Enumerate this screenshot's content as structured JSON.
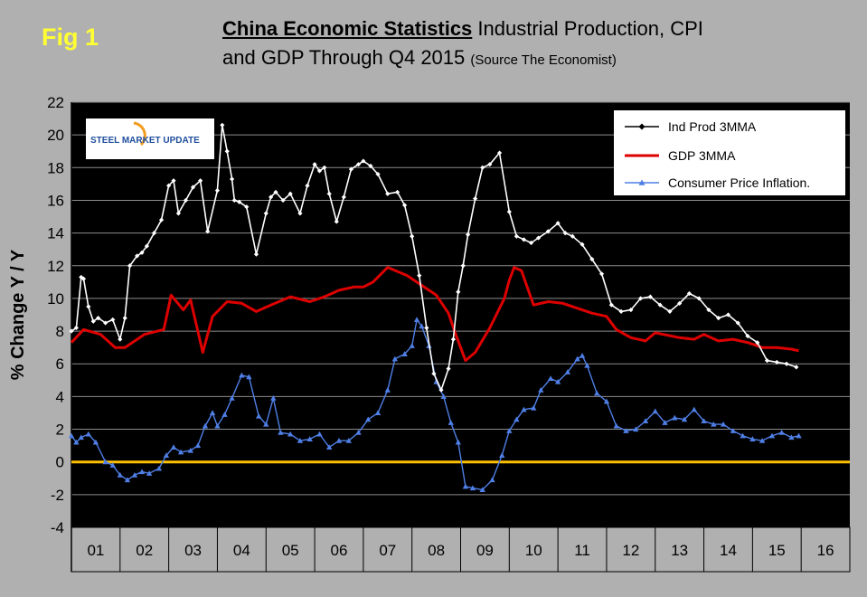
{
  "fig_label": "Fig 1",
  "title_main": "China Economic Statistics",
  "title_rest": "Industrial Production, CPI",
  "title_line2": "and GDP Through Q4 2015",
  "title_source": "(Source The Economist)",
  "logo_text": "STEEL MARKET UPDATE",
  "colors": {
    "ind_prod": "#ffffff",
    "gdp": "#dd0000",
    "cpi": "#4f7fe6",
    "zero_line": "#ffc000",
    "plot_bg": "#000000",
    "grid": "#8c8c8c"
  },
  "chart_data": {
    "type": "line",
    "ylabel": "% Change Y / Y",
    "ylim": [
      -4,
      22
    ],
    "yticks": [
      -4,
      -2,
      0,
      2,
      4,
      6,
      8,
      10,
      12,
      14,
      16,
      18,
      20,
      22
    ],
    "xlim": [
      2001,
      2017
    ],
    "x_categories": [
      "01",
      "02",
      "03",
      "04",
      "05",
      "06",
      "07",
      "08",
      "09",
      "10",
      "11",
      "12",
      "13",
      "14",
      "15",
      "16"
    ],
    "grid": true,
    "legend_position": "top-right",
    "reference_line": 0,
    "series": [
      {
        "name": "Ind Prod 3MMA",
        "x": [
          2001.0,
          2001.1,
          2001.2,
          2001.25,
          2001.35,
          2001.45,
          2001.55,
          2001.7,
          2001.85,
          2002.0,
          2002.1,
          2002.2,
          2002.35,
          2002.45,
          2002.55,
          2002.7,
          2002.85,
          2003.0,
          2003.1,
          2003.2,
          2003.35,
          2003.5,
          2003.65,
          2003.8,
          2004.0,
          2004.1,
          2004.2,
          2004.3,
          2004.35,
          2004.45,
          2004.6,
          2004.8,
          2005.0,
          2005.1,
          2005.2,
          2005.35,
          2005.5,
          2005.7,
          2005.85,
          2006.0,
          2006.1,
          2006.2,
          2006.3,
          2006.45,
          2006.6,
          2006.75,
          2006.9,
          2007.0,
          2007.15,
          2007.3,
          2007.5,
          2007.7,
          2007.85,
          2008.0,
          2008.15,
          2008.3,
          2008.45,
          2008.6,
          2008.75,
          2008.85,
          2008.95,
          2009.05,
          2009.15,
          2009.3,
          2009.45,
          2009.6,
          2009.8,
          2010.0,
          2010.15,
          2010.3,
          2010.45,
          2010.6,
          2010.8,
          2011.0,
          2011.15,
          2011.3,
          2011.5,
          2011.7,
          2011.9,
          2012.1,
          2012.3,
          2012.5,
          2012.7,
          2012.9,
          2013.1,
          2013.3,
          2013.5,
          2013.7,
          2013.9,
          2014.1,
          2014.3,
          2014.5,
          2014.7,
          2014.9,
          2015.1,
          2015.3,
          2015.5,
          2015.7,
          2015.9
        ],
        "y": [
          8.0,
          8.2,
          11.3,
          11.2,
          9.5,
          8.6,
          8.8,
          8.5,
          8.7,
          7.5,
          8.8,
          12.0,
          12.6,
          12.8,
          13.2,
          14.0,
          14.8,
          16.9,
          17.2,
          15.2,
          16.0,
          16.8,
          17.2,
          14.1,
          16.6,
          20.6,
          19.0,
          17.3,
          16.0,
          15.9,
          15.6,
          12.7,
          15.2,
          16.2,
          16.5,
          16.0,
          16.4,
          15.2,
          16.9,
          18.2,
          17.8,
          18.0,
          16.4,
          14.7,
          16.2,
          17.9,
          18.2,
          18.4,
          18.1,
          17.6,
          16.4,
          16.5,
          15.7,
          13.8,
          11.4,
          8.2,
          5.4,
          4.4,
          5.7,
          7.5,
          10.4,
          12.0,
          13.9,
          16.1,
          18.0,
          18.2,
          18.9,
          15.3,
          13.8,
          13.6,
          13.4,
          13.7,
          14.1,
          14.6,
          14.0,
          13.8,
          13.3,
          12.4,
          11.5,
          9.6,
          9.2,
          9.3,
          10.0,
          10.1,
          9.6,
          9.2,
          9.7,
          10.3,
          10.0,
          9.3,
          8.8,
          9.0,
          8.5,
          7.7,
          7.3,
          6.2,
          6.1,
          6.0,
          5.8
        ]
      },
      {
        "name": "GDP 3MMA",
        "x": [
          2001.0,
          2001.25,
          2001.6,
          2001.9,
          2002.1,
          2002.5,
          2002.9,
          2003.05,
          2003.3,
          2003.45,
          2003.7,
          2003.9,
          2004.2,
          2004.5,
          2004.8,
          2005.1,
          2005.5,
          2005.9,
          2006.2,
          2006.5,
          2006.8,
          2007.0,
          2007.2,
          2007.5,
          2007.9,
          2008.2,
          2008.5,
          2008.75,
          2008.9,
          2009.0,
          2009.1,
          2009.3,
          2009.6,
          2009.9,
          2010.0,
          2010.1,
          2010.25,
          2010.5,
          2010.8,
          2011.1,
          2011.4,
          2011.7,
          2012.0,
          2012.2,
          2012.5,
          2012.8,
          2013.0,
          2013.5,
          2013.8,
          2014.0,
          2014.3,
          2014.6,
          2014.9,
          2015.2,
          2015.5,
          2015.8,
          2015.95
        ],
        "y": [
          7.3,
          8.1,
          7.8,
          7.0,
          7.0,
          7.8,
          8.1,
          10.2,
          9.3,
          9.9,
          6.7,
          8.9,
          9.8,
          9.7,
          9.2,
          9.6,
          10.1,
          9.8,
          10.1,
          10.5,
          10.7,
          10.7,
          11.0,
          11.9,
          11.4,
          10.8,
          10.2,
          9.1,
          7.8,
          7.0,
          6.2,
          6.7,
          8.2,
          10.0,
          11.1,
          11.9,
          11.7,
          9.6,
          9.8,
          9.7,
          9.4,
          9.1,
          8.9,
          8.1,
          7.6,
          7.4,
          7.9,
          7.6,
          7.5,
          7.8,
          7.4,
          7.5,
          7.3,
          7.0,
          7.0,
          6.9,
          6.8
        ]
      },
      {
        "name": "Consumer Price Inflation.",
        "x": [
          2001.0,
          2001.1,
          2001.2,
          2001.35,
          2001.5,
          2001.7,
          2001.85,
          2002.0,
          2002.15,
          2002.3,
          2002.45,
          2002.6,
          2002.8,
          2002.95,
          2003.1,
          2003.25,
          2003.45,
          2003.6,
          2003.75,
          2003.9,
          2004.0,
          2004.15,
          2004.3,
          2004.5,
          2004.65,
          2004.85,
          2005.0,
          2005.15,
          2005.3,
          2005.5,
          2005.7,
          2005.9,
          2006.1,
          2006.3,
          2006.5,
          2006.7,
          2006.9,
          2007.1,
          2007.3,
          2007.5,
          2007.65,
          2007.85,
          2008.0,
          2008.1,
          2008.2,
          2008.35,
          2008.5,
          2008.65,
          2008.8,
          2008.95,
          2009.1,
          2009.25,
          2009.45,
          2009.65,
          2009.85,
          2010.0,
          2010.15,
          2010.3,
          2010.5,
          2010.65,
          2010.85,
          2011.0,
          2011.2,
          2011.4,
          2011.5,
          2011.6,
          2011.8,
          2012.0,
          2012.2,
          2012.4,
          2012.6,
          2012.8,
          2013.0,
          2013.2,
          2013.4,
          2013.6,
          2013.8,
          2014.0,
          2014.2,
          2014.4,
          2014.6,
          2014.8,
          2015.0,
          2015.2,
          2015.4,
          2015.6,
          2015.8,
          2015.95
        ],
        "y": [
          1.6,
          1.2,
          1.5,
          1.7,
          1.2,
          0.0,
          -0.2,
          -0.8,
          -1.1,
          -0.8,
          -0.6,
          -0.7,
          -0.4,
          0.4,
          0.9,
          0.6,
          0.7,
          1.0,
          2.2,
          3.0,
          2.2,
          2.9,
          3.9,
          5.3,
          5.2,
          2.8,
          2.3,
          3.9,
          1.8,
          1.7,
          1.3,
          1.4,
          1.7,
          0.9,
          1.3,
          1.3,
          1.8,
          2.6,
          3.0,
          4.4,
          6.3,
          6.6,
          7.1,
          8.7,
          8.3,
          7.1,
          4.9,
          4.0,
          2.4,
          1.2,
          -1.5,
          -1.6,
          -1.7,
          -1.1,
          0.4,
          1.9,
          2.6,
          3.2,
          3.3,
          4.4,
          5.1,
          4.9,
          5.5,
          6.3,
          6.5,
          5.9,
          4.2,
          3.7,
          2.2,
          1.9,
          2.0,
          2.5,
          3.1,
          2.4,
          2.7,
          2.6,
          3.2,
          2.5,
          2.3,
          2.3,
          1.9,
          1.6,
          1.4,
          1.3,
          1.6,
          1.8,
          1.5,
          1.6
        ]
      }
    ]
  }
}
